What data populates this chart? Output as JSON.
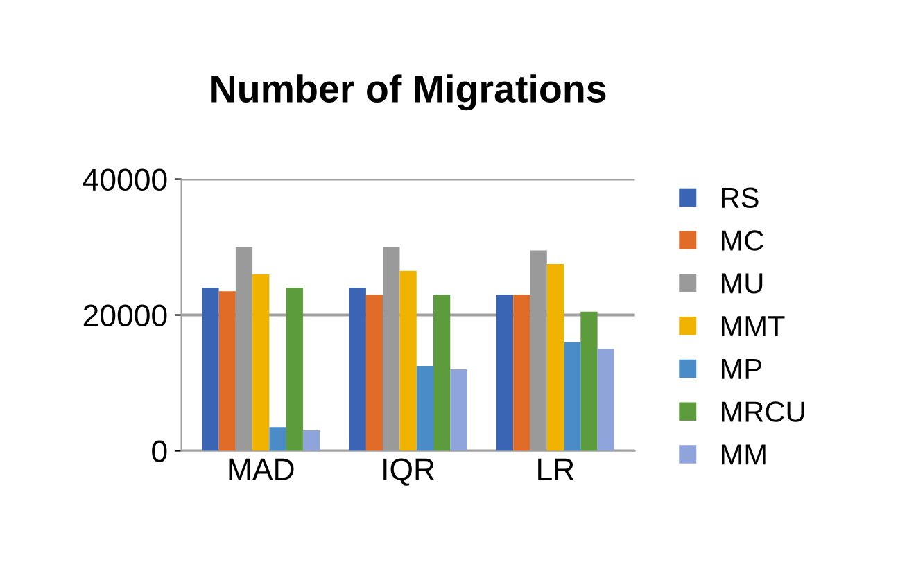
{
  "chart_data": {
    "type": "bar",
    "title": "Number of Migrations",
    "categories": [
      "MAD",
      "IQR",
      "LR"
    ],
    "series": [
      {
        "name": "RS",
        "color": "#3a64b4",
        "values": [
          24000,
          24000,
          23000
        ]
      },
      {
        "name": "MC",
        "color": "#e06c28",
        "values": [
          23500,
          23000,
          23000
        ]
      },
      {
        "name": "MU",
        "color": "#9a9a9a",
        "values": [
          30000,
          30000,
          29500
        ]
      },
      {
        "name": "MMT",
        "color": "#f0b400",
        "values": [
          26000,
          26500,
          27500
        ]
      },
      {
        "name": "MP",
        "color": "#4a8cc8",
        "values": [
          3500,
          12500,
          16000
        ]
      },
      {
        "name": "MRCU",
        "color": "#5c9c3c",
        "values": [
          24000,
          23000,
          20500
        ]
      },
      {
        "name": "MM",
        "color": "#90a4dc",
        "values": [
          3000,
          12000,
          15000
        ]
      }
    ],
    "ylim": [
      0,
      40000
    ],
    "yticks": [
      0,
      20000,
      40000
    ],
    "grid": "y",
    "legend": "right"
  }
}
